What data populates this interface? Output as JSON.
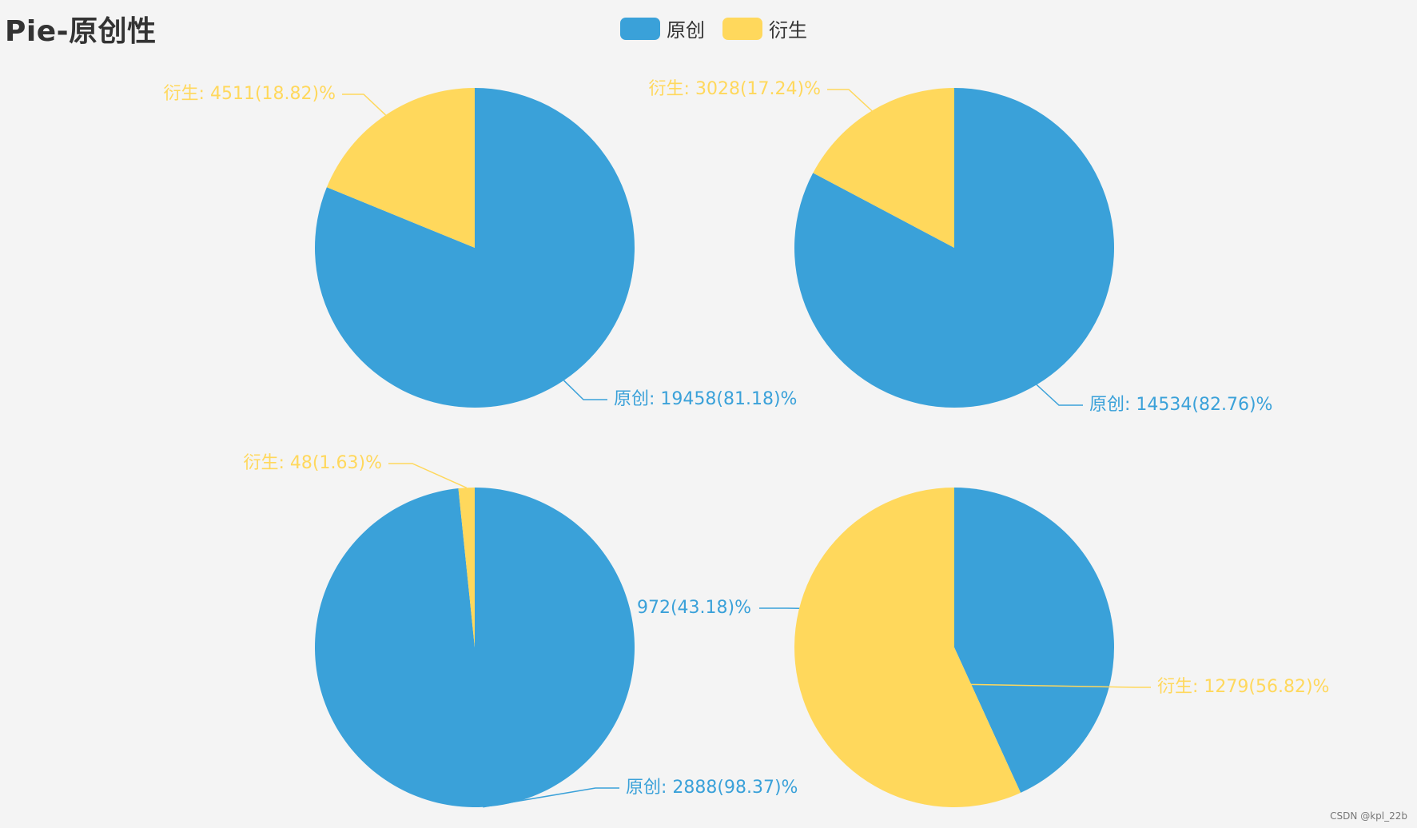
{
  "title": "Pie-原创性",
  "legend": [
    {
      "label": "原创",
      "color": "#3aa1d9"
    },
    {
      "label": "衍生",
      "color": "#ffd85c"
    }
  ],
  "watermark": "CSDN @kpl_22b",
  "chart_data": [
    {
      "type": "pie",
      "slices": [
        {
          "name": "原创",
          "value": 19458,
          "percent": 81.18,
          "label": "原创: 19458(81.18)%"
        },
        {
          "name": "衍生",
          "value": 4511,
          "percent": 18.82,
          "label": "衍生: 4511(18.82)%"
        }
      ]
    },
    {
      "type": "pie",
      "slices": [
        {
          "name": "原创",
          "value": 14534,
          "percent": 82.76,
          "label": "原创: 14534(82.76)%"
        },
        {
          "name": "衍生",
          "value": 3028,
          "percent": 17.24,
          "label": "衍生: 3028(17.24)%"
        }
      ]
    },
    {
      "type": "pie",
      "slices": [
        {
          "name": "原创",
          "value": 2888,
          "percent": 98.37,
          "label": "原创: 2888(98.37)%"
        },
        {
          "name": "衍生",
          "value": 48,
          "percent": 1.63,
          "label": "衍生: 48(1.63)%"
        }
      ]
    },
    {
      "type": "pie",
      "slices": [
        {
          "name": "原创",
          "value": 972,
          "percent": 43.18,
          "label": "972(43.18)%"
        },
        {
          "name": "衍生",
          "value": 1279,
          "percent": 56.82,
          "label": "衍生: 1279(56.82)%"
        }
      ]
    }
  ]
}
